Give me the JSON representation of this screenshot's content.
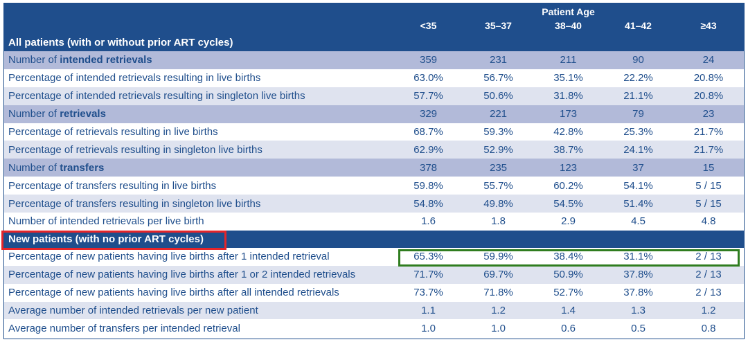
{
  "header": {
    "group_label": "Patient Age",
    "age_columns": [
      "<35",
      "35–37",
      "38–40",
      "41–42",
      "≥43"
    ]
  },
  "sections": [
    {
      "title": "All patients (with or without prior ART cycles)",
      "rows": [
        {
          "label_prefix": "Number of ",
          "label_bold": "intended retrievals",
          "values": [
            "359",
            "231",
            "211",
            "90",
            "24"
          ]
        },
        {
          "label": "Percentage of intended retrievals resulting in live births",
          "values": [
            "63.0%",
            "56.7%",
            "35.1%",
            "22.2%",
            "20.8%"
          ]
        },
        {
          "label": "Percentage of intended retrievals resulting in singleton live births",
          "values": [
            "57.7%",
            "50.6%",
            "31.8%",
            "21.1%",
            "20.8%"
          ]
        },
        {
          "label_prefix": "Number of ",
          "label_bold": "retrievals",
          "values": [
            "329",
            "221",
            "173",
            "79",
            "23"
          ]
        },
        {
          "label": "Percentage of retrievals resulting in live births",
          "values": [
            "68.7%",
            "59.3%",
            "42.8%",
            "25.3%",
            "21.7%"
          ]
        },
        {
          "label": "Percentage of retrievals resulting in singleton live births",
          "values": [
            "62.9%",
            "52.9%",
            "38.7%",
            "24.1%",
            "21.7%"
          ]
        },
        {
          "label_prefix": "Number of ",
          "label_bold": "transfers",
          "values": [
            "378",
            "235",
            "123",
            "37",
            "15"
          ]
        },
        {
          "label": "Percentage of transfers resulting in live births",
          "values": [
            "59.8%",
            "55.7%",
            "60.2%",
            "54.1%",
            "5 / 15"
          ]
        },
        {
          "label": "Percentage of transfers resulting in singleton live births",
          "values": [
            "54.8%",
            "49.8%",
            "54.5%",
            "51.4%",
            "5 / 15"
          ]
        },
        {
          "label": "Number of intended retrievals per live birth",
          "values": [
            "1.6",
            "1.8",
            "2.9",
            "4.5",
            "4.8"
          ]
        }
      ]
    },
    {
      "title": "New patients (with no prior ART cycles)",
      "rows": [
        {
          "label": "Percentage of new patients having live births after 1 intended retrieval",
          "values": [
            "65.3%",
            "59.9%",
            "38.4%",
            "31.1%",
            "2 / 13"
          ]
        },
        {
          "label": "Percentage of new patients having live births after 1 or 2 intended retrievals",
          "values": [
            "71.7%",
            "69.7%",
            "50.9%",
            "37.8%",
            "2 / 13"
          ]
        },
        {
          "label": "Percentage of new patients having live births after all intended retrievals",
          "values": [
            "73.7%",
            "71.8%",
            "52.7%",
            "37.8%",
            "2 / 13"
          ]
        },
        {
          "label": "Average number of intended retrievals per new patient",
          "values": [
            "1.1",
            "1.2",
            "1.4",
            "1.3",
            "1.2"
          ]
        },
        {
          "label": "Average number of transfers per intended retrieval",
          "values": [
            "1.0",
            "1.0",
            "0.6",
            "0.5",
            "0.8"
          ]
        }
      ]
    }
  ],
  "highlights": {
    "red_box_color": "#e5252a",
    "green_box_color": "#2f7d1f"
  }
}
